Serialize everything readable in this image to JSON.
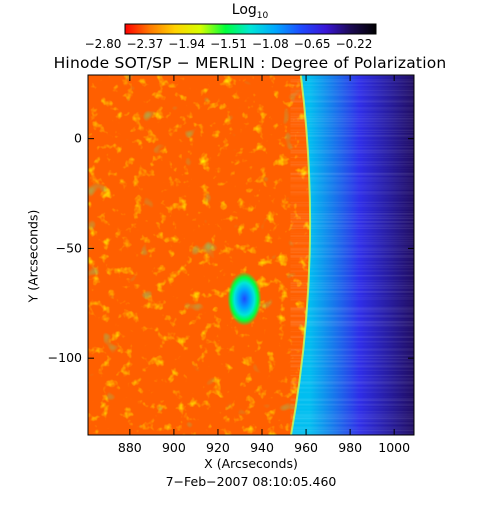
{
  "chart_data": {
    "type": "heatmap",
    "title": "Hinode SOT/SP − MERLIN : Degree of Polarization",
    "xlabel": "X (Arcseconds)",
    "ylabel": "Y (Arcseconds)",
    "footer": "7−Feb−2007 08:10:05.460",
    "xlim": [
      861,
      1009
    ],
    "ylim": [
      -135,
      29
    ],
    "x_ticks": [
      880,
      900,
      920,
      940,
      960,
      980,
      1000
    ],
    "y_ticks": [
      0,
      -50,
      -100
    ],
    "colorbar": {
      "label": "Log",
      "label_sub": "10",
      "range": [
        -2.8,
        -0.22
      ],
      "ticks": [
        "−2.80",
        "−2.37",
        "−1.94",
        "−1.51",
        "−1.08",
        "−0.65",
        "−0.22"
      ],
      "colors": [
        "#ff0000",
        "#ff7a00",
        "#ffd200",
        "#d7ff00",
        "#00ff3c",
        "#00e6d7",
        "#00a6ff",
        "#1e4bff",
        "#3a16d6",
        "#1c0a52",
        "#000000"
      ]
    },
    "features": {
      "limb_x": 963,
      "sunspot_center": [
        932,
        -73
      ],
      "sunspot_value": -0.9,
      "disk_mean_value": -2.6,
      "offlimb_values": [
        -1.35,
        -0.85,
        -0.5
      ]
    },
    "grid": false,
    "legend": "none"
  }
}
